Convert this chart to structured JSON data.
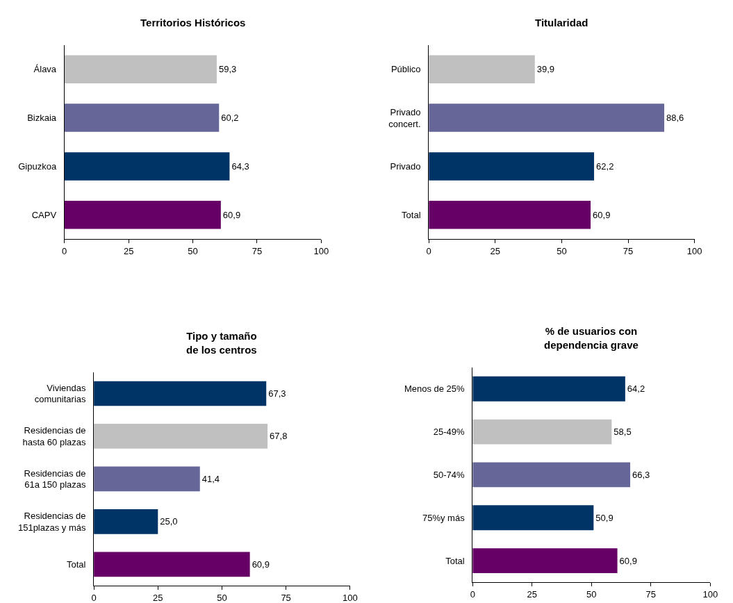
{
  "chart_data": [
    {
      "type": "bar",
      "orientation": "horizontal",
      "title": "Territorios Históricos",
      "categories": [
        "Álava",
        "Bizkaia",
        "Gipuzkoa",
        "CAPV"
      ],
      "values": [
        59.3,
        60.2,
        64.3,
        60.9
      ],
      "colors": [
        "#c0c0c0",
        "#666699",
        "#003366",
        "#660066"
      ],
      "value_labels": [
        "59,3",
        "60,2",
        "64,3",
        "60,9"
      ],
      "xlim": [
        0,
        100
      ],
      "xticks": [
        0,
        25,
        50,
        75,
        100
      ]
    },
    {
      "type": "bar",
      "orientation": "horizontal",
      "title": "Titularidad",
      "categories": [
        "Público",
        "Privado\nconcert.",
        "Privado",
        "Total"
      ],
      "values": [
        39.9,
        88.6,
        62.2,
        60.9
      ],
      "colors": [
        "#c0c0c0",
        "#666699",
        "#003366",
        "#660066"
      ],
      "value_labels": [
        "39,9",
        "88,6",
        "62,2",
        "60,9"
      ],
      "xlim": [
        0,
        100
      ],
      "xticks": [
        0,
        25,
        50,
        75,
        100
      ]
    },
    {
      "type": "bar",
      "orientation": "horizontal",
      "title": "Tipo y tamaño\nde los centros",
      "categories": [
        "Viviendas\ncomunitarias",
        "Residencias de\nhasta 60 plazas",
        "Residencias de\n61a 150 plazas",
        "Residencias de\n151plazas y más",
        "Total"
      ],
      "values": [
        67.3,
        67.8,
        41.4,
        25.0,
        60.9
      ],
      "colors": [
        "#003366",
        "#c0c0c0",
        "#666699",
        "#003366",
        "#660066"
      ],
      "value_labels": [
        "67,3",
        "67,8",
        "41,4",
        "25,0",
        "60,9"
      ],
      "xlim": [
        0,
        100
      ],
      "xticks": [
        0,
        25,
        50,
        75,
        100
      ]
    },
    {
      "type": "bar",
      "orientation": "horizontal",
      "title": "% de usuarios con\ndependencia grave",
      "categories": [
        "Menos de 25%",
        "25-49%",
        "50-74%",
        "75%y más",
        "Total"
      ],
      "values": [
        64.2,
        58.5,
        66.3,
        50.9,
        60.9
      ],
      "colors": [
        "#003366",
        "#c0c0c0",
        "#666699",
        "#003366",
        "#660066"
      ],
      "value_labels": [
        "64,2",
        "58,5",
        "66,3",
        "50,9",
        "60,9"
      ],
      "xlim": [
        0,
        100
      ],
      "xticks": [
        0,
        25,
        50,
        75,
        100
      ]
    }
  ]
}
